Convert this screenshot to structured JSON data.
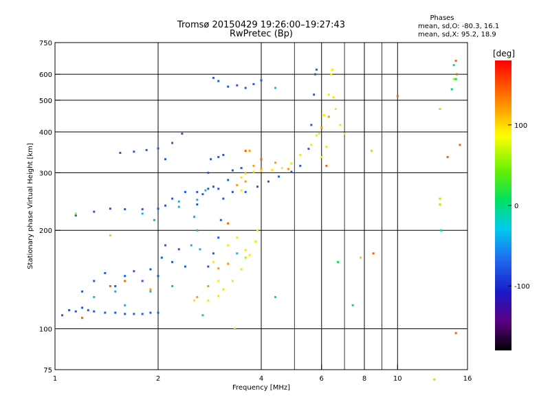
{
  "chart_data": {
    "type": "scatter",
    "title": "Tromsø 20150429 19:26:00–19:27:43",
    "subtitle": "RwPretec (Bp)",
    "stats": {
      "heading": "Phases",
      "line_o": "mean, sd,O: -80.3, 16.1",
      "line_x": "mean, sd,X:  95.2, 18.9"
    },
    "xlabel": "Frequency [MHz]",
    "ylabel": "Stationary phase Virtual Height [km]",
    "x_scale": "log",
    "y_scale": "log",
    "xlim": [
      1,
      16
    ],
    "ylim": [
      75,
      750
    ],
    "x_ticks": [
      1,
      2,
      4,
      6,
      8,
      10,
      16
    ],
    "x_tick_labels": [
      "1",
      "2",
      "4",
      "6",
      "8",
      "10",
      "16"
    ],
    "x_grid_major": [
      2,
      4,
      6,
      8,
      10
    ],
    "x_grid_minor": [
      5,
      7,
      9
    ],
    "y_ticks": [
      75,
      100,
      200,
      300,
      400,
      500,
      600,
      750
    ],
    "y_tick_labels": [
      "75",
      "100",
      "200",
      "300",
      "400",
      "500",
      "600",
      "750"
    ],
    "y_grid_major": [
      100,
      200,
      300,
      400,
      500,
      600
    ],
    "grid": true,
    "colorbar": {
      "label": "[deg]",
      "ticks": [
        100,
        0,
        -100
      ],
      "tick_labels": [
        "100",
        "0",
        "-100"
      ],
      "range": [
        -180,
        180
      ],
      "colormap": "rainbow"
    },
    "series": [
      {
        "color_deg": -80,
        "points": [
          [
            1.05,
            110
          ],
          [
            1.1,
            114
          ],
          [
            1.15,
            113
          ],
          [
            1.2,
            116
          ],
          [
            1.25,
            114
          ],
          [
            1.3,
            113
          ],
          [
            1.4,
            112
          ],
          [
            1.5,
            112
          ],
          [
            1.6,
            111
          ],
          [
            1.7,
            111
          ],
          [
            1.8,
            111
          ],
          [
            1.9,
            112
          ],
          [
            2.0,
            112
          ],
          [
            1.2,
            130
          ],
          [
            1.3,
            140
          ],
          [
            1.4,
            148
          ],
          [
            1.5,
            135
          ],
          [
            1.6,
            145
          ],
          [
            1.7,
            150
          ],
          [
            1.8,
            140
          ],
          [
            1.9,
            152
          ],
          [
            2.0,
            145
          ],
          [
            2.05,
            165
          ],
          [
            2.1,
            180
          ],
          [
            2.2,
            160
          ],
          [
            2.3,
            175
          ],
          [
            2.4,
            155
          ],
          [
            1.15,
            222
          ],
          [
            1.3,
            228
          ],
          [
            1.45,
            233
          ],
          [
            1.6,
            232
          ],
          [
            1.8,
            232
          ],
          [
            2.0,
            233
          ],
          [
            2.1,
            238
          ],
          [
            2.2,
            250
          ],
          [
            2.4,
            262
          ],
          [
            2.6,
            262
          ],
          [
            2.8,
            268
          ],
          [
            2.9,
            272
          ],
          [
            3.0,
            268
          ],
          [
            3.3,
            262
          ],
          [
            3.6,
            262
          ],
          [
            3.9,
            272
          ],
          [
            4.2,
            282
          ],
          [
            4.5,
            292
          ],
          [
            4.9,
            302
          ],
          [
            5.2,
            315
          ],
          [
            5.5,
            355
          ],
          [
            5.6,
            420
          ],
          [
            5.7,
            520
          ],
          [
            5.75,
            600
          ],
          [
            5.8,
            620
          ],
          [
            2.1,
            330
          ],
          [
            2.2,
            370
          ],
          [
            2.35,
            395
          ],
          [
            1.55,
            345
          ],
          [
            1.7,
            348
          ],
          [
            1.85,
            352
          ],
          [
            2.0,
            356
          ],
          [
            2.8,
            155
          ],
          [
            2.9,
            170
          ],
          [
            3.0,
            190
          ],
          [
            3.05,
            215
          ],
          [
            3.1,
            250
          ],
          [
            3.2,
            285
          ],
          [
            3.3,
            305
          ],
          [
            3.5,
            310
          ],
          [
            3.0,
            335
          ],
          [
            3.1,
            340
          ],
          [
            2.6,
            240
          ],
          [
            2.7,
            258
          ],
          [
            2.8,
            300
          ],
          [
            2.85,
            330
          ],
          [
            3.2,
            550
          ],
          [
            3.4,
            555
          ],
          [
            3.6,
            545
          ],
          [
            3.8,
            560
          ],
          [
            4.0,
            575
          ],
          [
            3.0,
            572
          ],
          [
            2.9,
            585
          ]
        ]
      },
      {
        "color_deg": -40,
        "points": [
          [
            1.3,
            125
          ],
          [
            1.5,
            130
          ],
          [
            1.6,
            118
          ],
          [
            1.9,
            130
          ],
          [
            2.2,
            135
          ],
          [
            2.5,
            180
          ],
          [
            2.55,
            220
          ],
          [
            2.6,
            200
          ],
          [
            2.65,
            175
          ],
          [
            1.8,
            225
          ],
          [
            2.3,
            236
          ],
          [
            2.6,
            248
          ],
          [
            2.75,
            265
          ],
          [
            1.95,
            215
          ],
          [
            3.4,
            170
          ],
          [
            4.4,
            545
          ],
          [
            2.3,
            245
          ]
        ]
      },
      {
        "color_deg": 100,
        "points": [
          [
            2.55,
            122
          ],
          [
            2.8,
            122
          ],
          [
            3.0,
            126
          ],
          [
            3.1,
            132
          ],
          [
            3.3,
            140
          ],
          [
            3.5,
            152
          ],
          [
            3.7,
            168
          ],
          [
            3.85,
            185
          ],
          [
            3.9,
            200
          ],
          [
            3.0,
            140
          ],
          [
            2.9,
            160
          ],
          [
            3.2,
            180
          ],
          [
            3.4,
            190
          ],
          [
            3.6,
            174
          ],
          [
            3.5,
            290
          ],
          [
            3.6,
            298
          ],
          [
            3.8,
            302
          ],
          [
            4.0,
            304
          ],
          [
            4.3,
            306
          ],
          [
            4.6,
            310
          ],
          [
            4.9,
            320
          ],
          [
            5.2,
            340
          ],
          [
            5.6,
            365
          ],
          [
            5.9,
            395
          ],
          [
            6.1,
            450
          ],
          [
            6.3,
            520
          ],
          [
            6.4,
            600
          ],
          [
            6.45,
            620
          ],
          [
            6.6,
            470
          ],
          [
            6.8,
            420
          ],
          [
            7.0,
            395
          ],
          [
            6.2,
            360
          ],
          [
            6.0,
            335
          ],
          [
            3.5,
            265
          ],
          [
            6.5,
            510
          ],
          [
            5.8,
            390
          ]
        ]
      },
      {
        "color_deg": 130,
        "points": [
          [
            1.9,
            132
          ],
          [
            2.8,
            135
          ],
          [
            3.0,
            153
          ],
          [
            3.2,
            158
          ],
          [
            3.4,
            275
          ],
          [
            3.6,
            282
          ],
          [
            3.8,
            315
          ],
          [
            4.0,
            308
          ],
          [
            4.4,
            322
          ],
          [
            4.8,
            308
          ],
          [
            6.0,
            412
          ],
          [
            6.3,
            445
          ],
          [
            2.6,
            125
          ],
          [
            3.7,
            350
          ]
        ]
      },
      {
        "color_deg": 150,
        "points": [
          [
            1.45,
            135
          ],
          [
            1.6,
            140
          ],
          [
            1.2,
            108
          ],
          [
            3.2,
            210
          ],
          [
            3.6,
            350
          ],
          [
            4.0,
            330
          ],
          [
            6.2,
            315
          ],
          [
            8.5,
            170
          ],
          [
            10.0,
            515
          ],
          [
            14.0,
            335
          ],
          [
            14.8,
            660
          ],
          [
            14.9,
            600
          ],
          [
            14.8,
            97
          ],
          [
            15.2,
            365
          ]
        ]
      },
      {
        "color_deg": 60,
        "points": [
          [
            1.15,
            225
          ],
          [
            1.45,
            193
          ],
          [
            3.35,
            100
          ],
          [
            3.6,
            165
          ],
          [
            8.4,
            350
          ],
          [
            7.8,
            165
          ],
          [
            14.6,
            580
          ],
          [
            13.3,
            240
          ],
          [
            12.8,
            70
          ],
          [
            13.3,
            250
          ],
          [
            13.3,
            470
          ]
        ]
      },
      {
        "color_deg": 0,
        "points": [
          [
            13.4,
            200
          ],
          [
            7.4,
            118
          ],
          [
            14.8,
            580
          ],
          [
            14.6,
            640
          ],
          [
            14.4,
            540
          ],
          [
            6.7,
            160
          ],
          [
            4.4,
            125
          ],
          [
            2.7,
            110
          ]
        ]
      }
    ]
  }
}
